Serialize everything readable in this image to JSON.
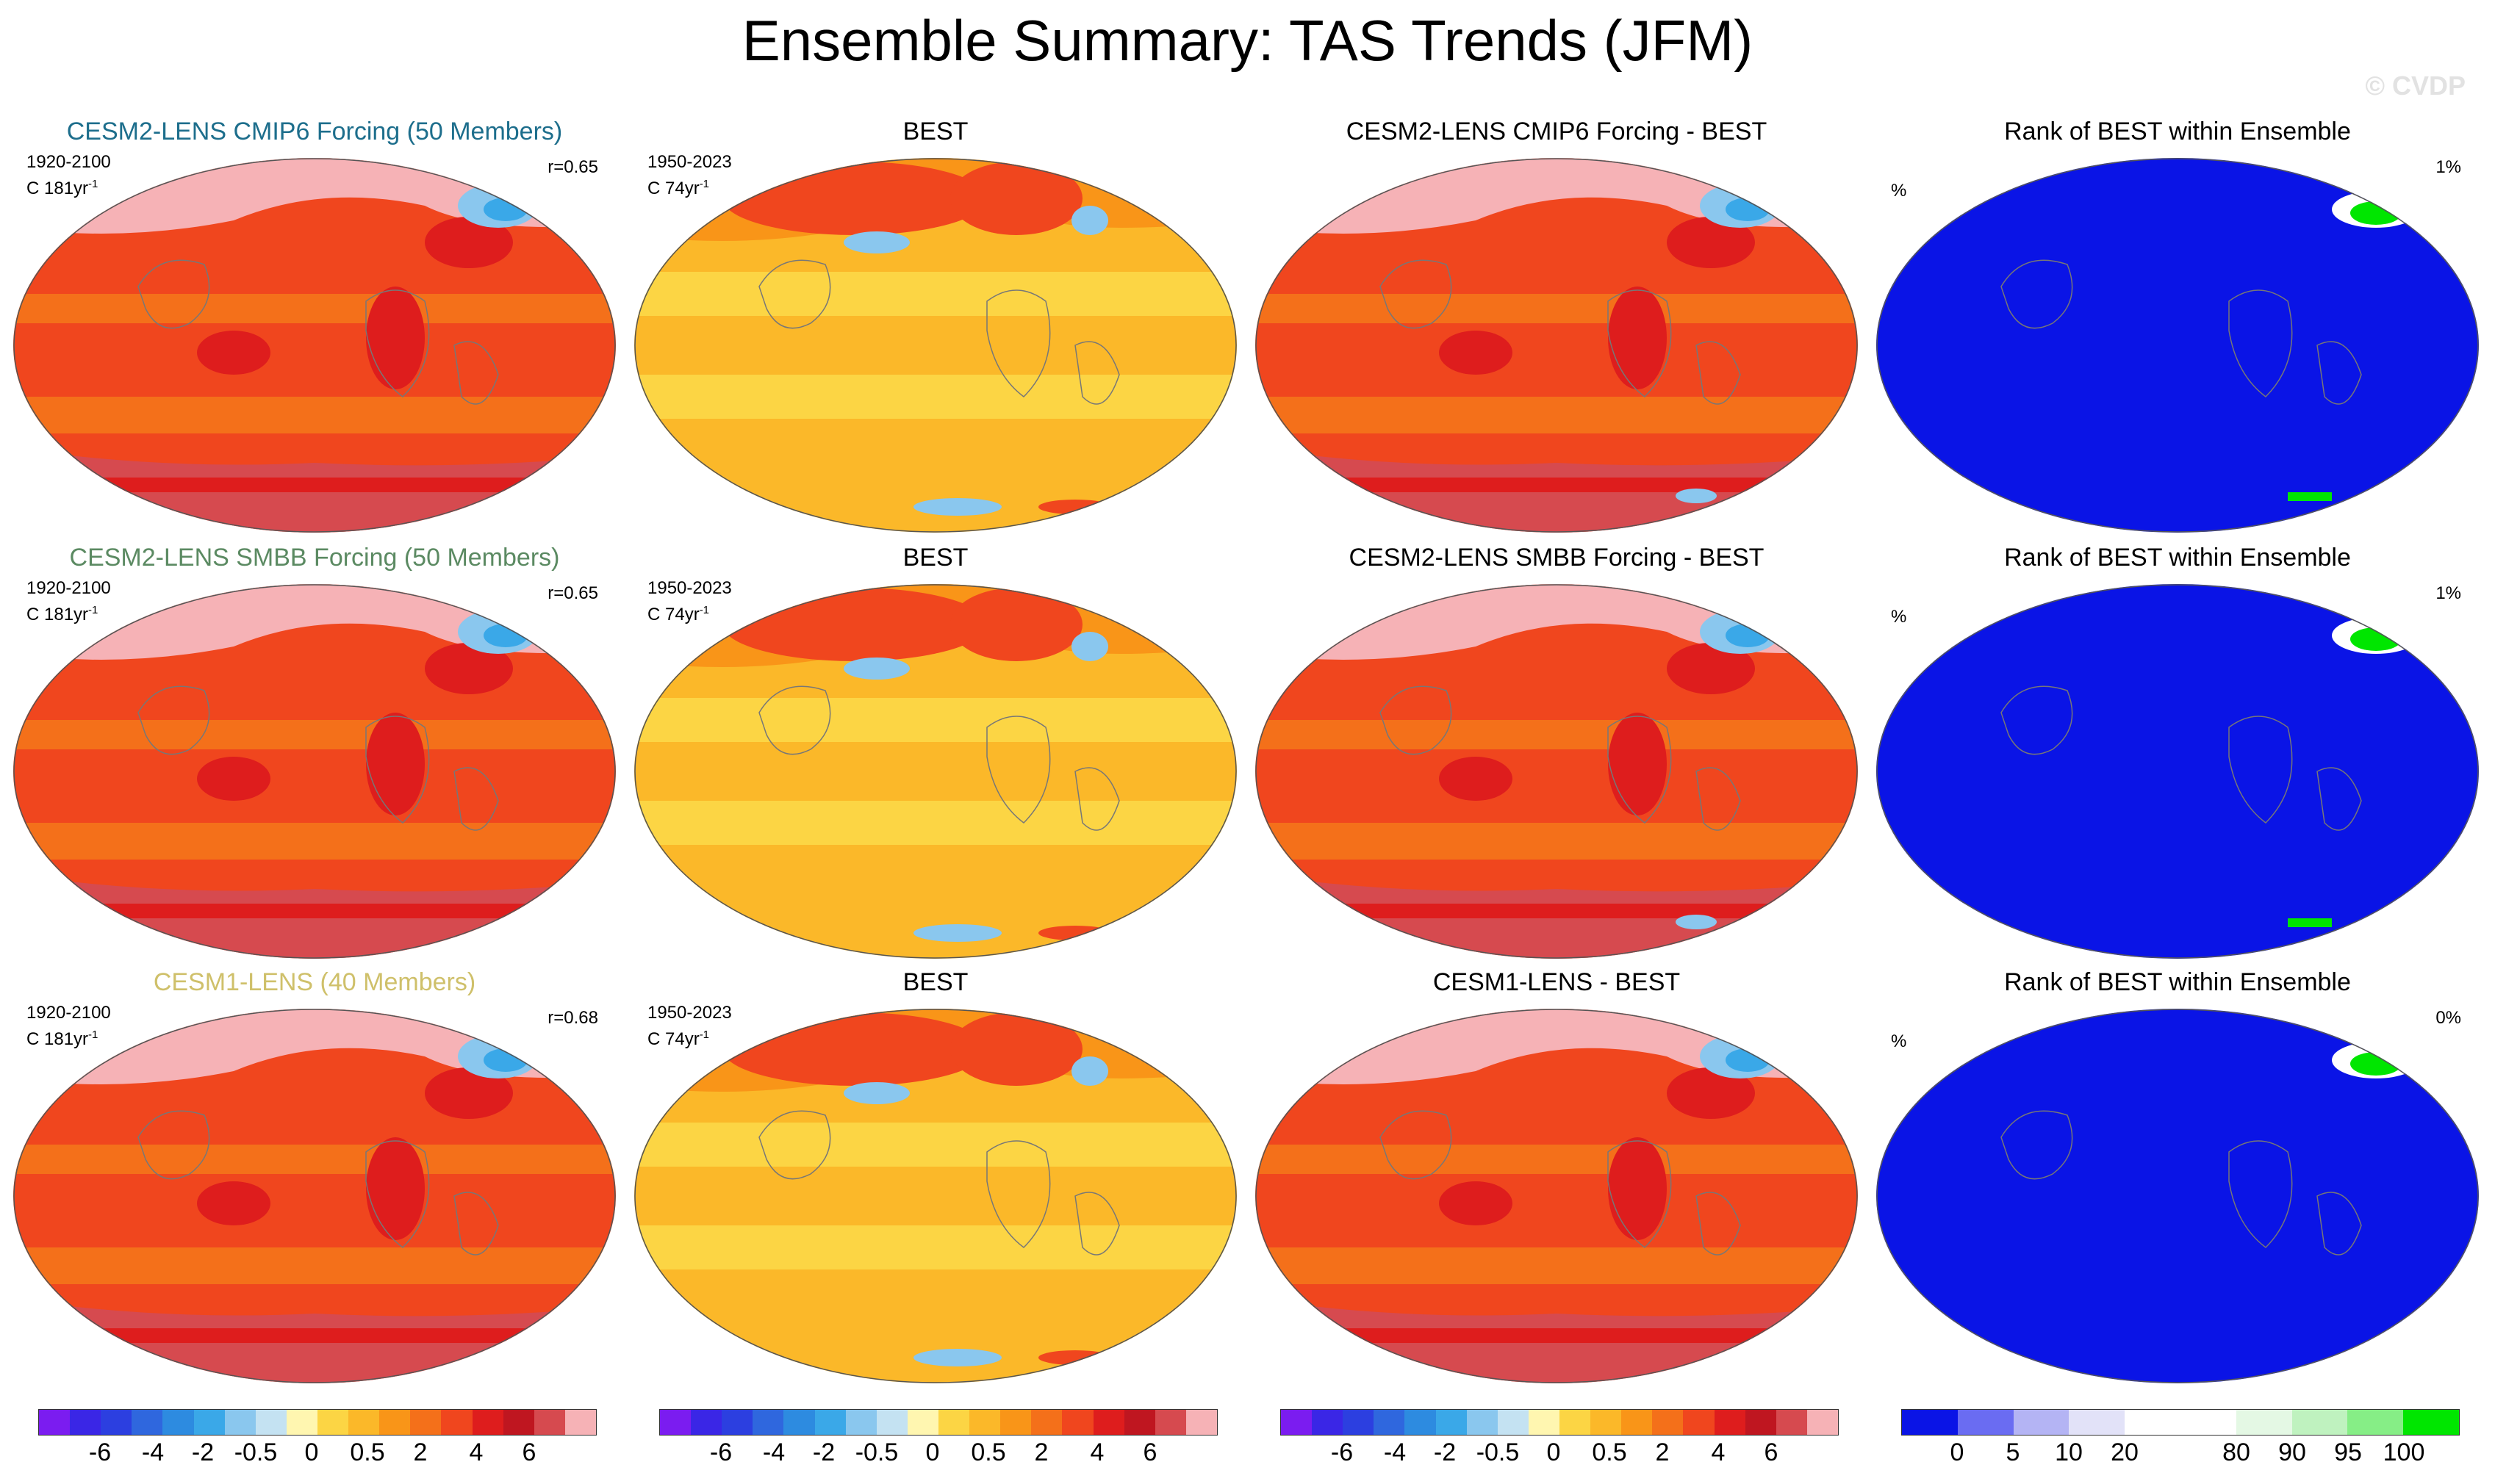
{
  "title": "Ensemble Summary: TAS Trends (JFM)",
  "watermark": "© CVDP",
  "rows": [
    {
      "model": {
        "title": "CESM2-LENS CMIP6 Forcing (50 Members)",
        "title_color": "#1d6e8c",
        "period": "1920-2100",
        "units": "C 181yr",
        "units_exp": "-1",
        "r": "r=0.65"
      },
      "obs": {
        "title": "BEST",
        "period": "1950-2023",
        "units": "C 74yr",
        "units_exp": "-1"
      },
      "diff": {
        "title": "CESM2-LENS CMIP6 Forcing - BEST"
      },
      "rank": {
        "title": "Rank of BEST within Ensemble",
        "percent_label": "%",
        "percent_value": "1%"
      }
    },
    {
      "model": {
        "title": "CESM2-LENS SMBB Forcing (50 Members)",
        "title_color": "#5b8a62",
        "period": "1920-2100",
        "units": "C 181yr",
        "units_exp": "-1",
        "r": "r=0.65"
      },
      "obs": {
        "title": "BEST",
        "period": "1950-2023",
        "units": "C 74yr",
        "units_exp": "-1"
      },
      "diff": {
        "title": "CESM2-LENS SMBB Forcing - BEST"
      },
      "rank": {
        "title": "Rank of BEST within Ensemble",
        "percent_label": "%",
        "percent_value": "1%"
      }
    },
    {
      "model": {
        "title": "CESM1-LENS (40 Members)",
        "title_color": "#cfc06a",
        "period": "1920-2100",
        "units": "C 181yr",
        "units_exp": "-1",
        "r": "r=0.68"
      },
      "obs": {
        "title": "BEST",
        "period": "1950-2023",
        "units": "C 74yr",
        "units_exp": "-1"
      },
      "diff": {
        "title": "CESM1-LENS - BEST"
      },
      "rank": {
        "title": "Rank of BEST within Ensemble",
        "percent_label": "%",
        "percent_value": "0%"
      }
    }
  ],
  "trend_colorbar": {
    "colors": [
      "#7b1cf0",
      "#3a26e6",
      "#2c3fe0",
      "#2f67de",
      "#2d8be0",
      "#3aa8e8",
      "#8ac7ee",
      "#c4e2f2",
      "#fff6b0",
      "#fcd544",
      "#fbb829",
      "#f99518",
      "#f4701a",
      "#f0461e",
      "#de1d1d",
      "#bf1620",
      "#d64a4f",
      "#f6b2b6"
    ],
    "labels": [
      "-6",
      "-4",
      "-2",
      "-0.5",
      "0",
      "0.5",
      "2",
      "4",
      "6"
    ]
  },
  "rank_colorbar": {
    "colors": [
      "#0a14e6",
      "#6a6cf2",
      "#b4b4f4",
      "#e2e2f8",
      "#ffffff",
      "#ffffff",
      "#e4f8e4",
      "#bff2bf",
      "#86ee86",
      "#00e600"
    ],
    "labels": [
      "0",
      "5",
      "10",
      "20",
      "80",
      "90",
      "95",
      "100"
    ]
  },
  "map_colors": {
    "model_base": "#f0461e",
    "model_tropics": "#f4701a",
    "model_high": "#de1d1d",
    "model_arctic": "#f6b2b6",
    "model_southern": "#d64a4f",
    "obs_base": "#fbb829",
    "obs_light": "#fcd544",
    "obs_mid": "#f99518",
    "obs_high": "#f0461e",
    "cold_patch": "#8ac7ee",
    "cold_core": "#3aa8e8",
    "rank_base": "#0a14e6",
    "rank_green": "#00e600",
    "rank_white": "#ffffff"
  }
}
